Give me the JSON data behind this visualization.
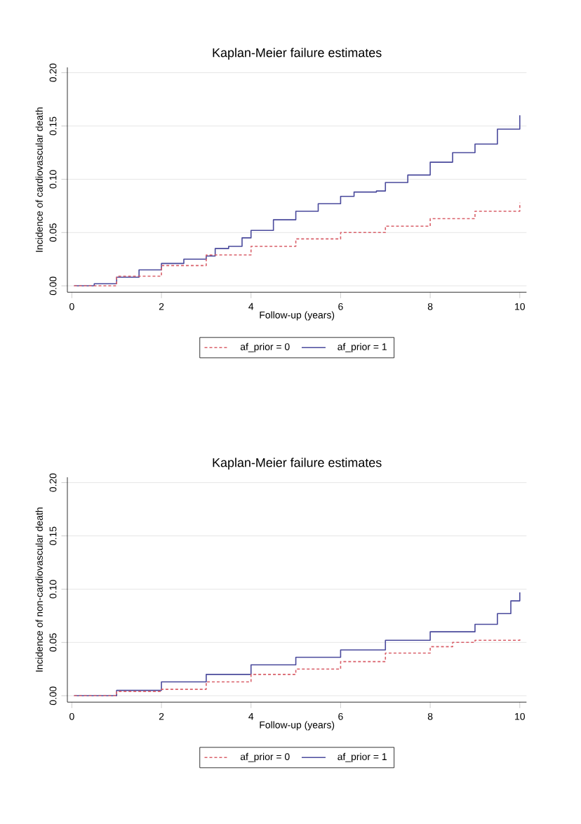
{
  "chart_data": [
    {
      "type": "step",
      "title": "Kaplan-Meier failure estimates",
      "xlabel": "Follow-up (years)",
      "ylabel": "Incidence of cardiovascular death",
      "xlim": [
        -0.1,
        10.15
      ],
      "ylim": [
        -0.006,
        0.205
      ],
      "xticks": [
        0,
        2,
        4,
        6,
        8,
        10
      ],
      "yticks": [
        {
          "value": 0,
          "label": "0.00"
        },
        {
          "value": 0.05,
          "label": "0.05"
        },
        {
          "value": 0.1,
          "label": "0.10"
        },
        {
          "value": 0.15,
          "label": "0.15"
        },
        {
          "value": 0.2,
          "label": "0.20"
        }
      ],
      "grid": "y",
      "legend": "bottom",
      "series": [
        {
          "name": "af_prior = 0",
          "color": "#d9606a",
          "line_style": "dashed",
          "x": [
            0.05,
            1,
            2,
            3,
            4,
            5,
            6,
            7,
            8,
            9,
            10
          ],
          "values": [
            0,
            0.009,
            0.019,
            0.029,
            0.037,
            0.044,
            0.05,
            0.056,
            0.063,
            0.07,
            0.078
          ]
        },
        {
          "name": "af_prior = 1",
          "color": "#4a4a9c",
          "line_style": "solid",
          "x": [
            0.05,
            0.5,
            1,
            1.5,
            2,
            2.5,
            3,
            3.2,
            3.5,
            3.8,
            4,
            4.5,
            5,
            5.5,
            6,
            6.3,
            6.8,
            7,
            7.5,
            8,
            8.5,
            9,
            9.5,
            10
          ],
          "values": [
            0,
            0.002,
            0.008,
            0.015,
            0.021,
            0.025,
            0.028,
            0.035,
            0.037,
            0.045,
            0.052,
            0.062,
            0.07,
            0.077,
            0.084,
            0.088,
            0.089,
            0.097,
            0.104,
            0.116,
            0.125,
            0.133,
            0.147,
            0.16
          ]
        }
      ]
    },
    {
      "type": "step",
      "title": "Kaplan-Meier failure estimates",
      "xlabel": "Follow-up (years)",
      "ylabel": "Incidence of non-cardiovascular death",
      "xlim": [
        -0.1,
        10.15
      ],
      "ylim": [
        -0.006,
        0.205
      ],
      "xticks": [
        0,
        2,
        4,
        6,
        8,
        10
      ],
      "yticks": [
        {
          "value": 0,
          "label": "0.00"
        },
        {
          "value": 0.05,
          "label": "0.05"
        },
        {
          "value": 0.1,
          "label": "0.10"
        },
        {
          "value": 0.15,
          "label": "0.15"
        },
        {
          "value": 0.2,
          "label": "0.20"
        }
      ],
      "grid": "y",
      "legend": "bottom",
      "series": [
        {
          "name": "af_prior = 0",
          "color": "#d9606a",
          "line_style": "dashed",
          "x": [
            0.05,
            1,
            2,
            3,
            4,
            5,
            6,
            7,
            8,
            8.5,
            9,
            10
          ],
          "values": [
            0,
            0.004,
            0.006,
            0.013,
            0.02,
            0.025,
            0.032,
            0.04,
            0.046,
            0.05,
            0.052,
            0.053
          ]
        },
        {
          "name": "af_prior = 1",
          "color": "#4a4a9c",
          "line_style": "solid",
          "x": [
            0.05,
            1,
            2,
            3,
            4,
            5,
            6,
            7,
            8,
            8.8,
            9,
            9.5,
            9.8,
            10
          ],
          "values": [
            0,
            0.005,
            0.013,
            0.02,
            0.029,
            0.036,
            0.043,
            0.052,
            0.06,
            0.06,
            0.067,
            0.077,
            0.089,
            0.097
          ]
        }
      ]
    }
  ]
}
